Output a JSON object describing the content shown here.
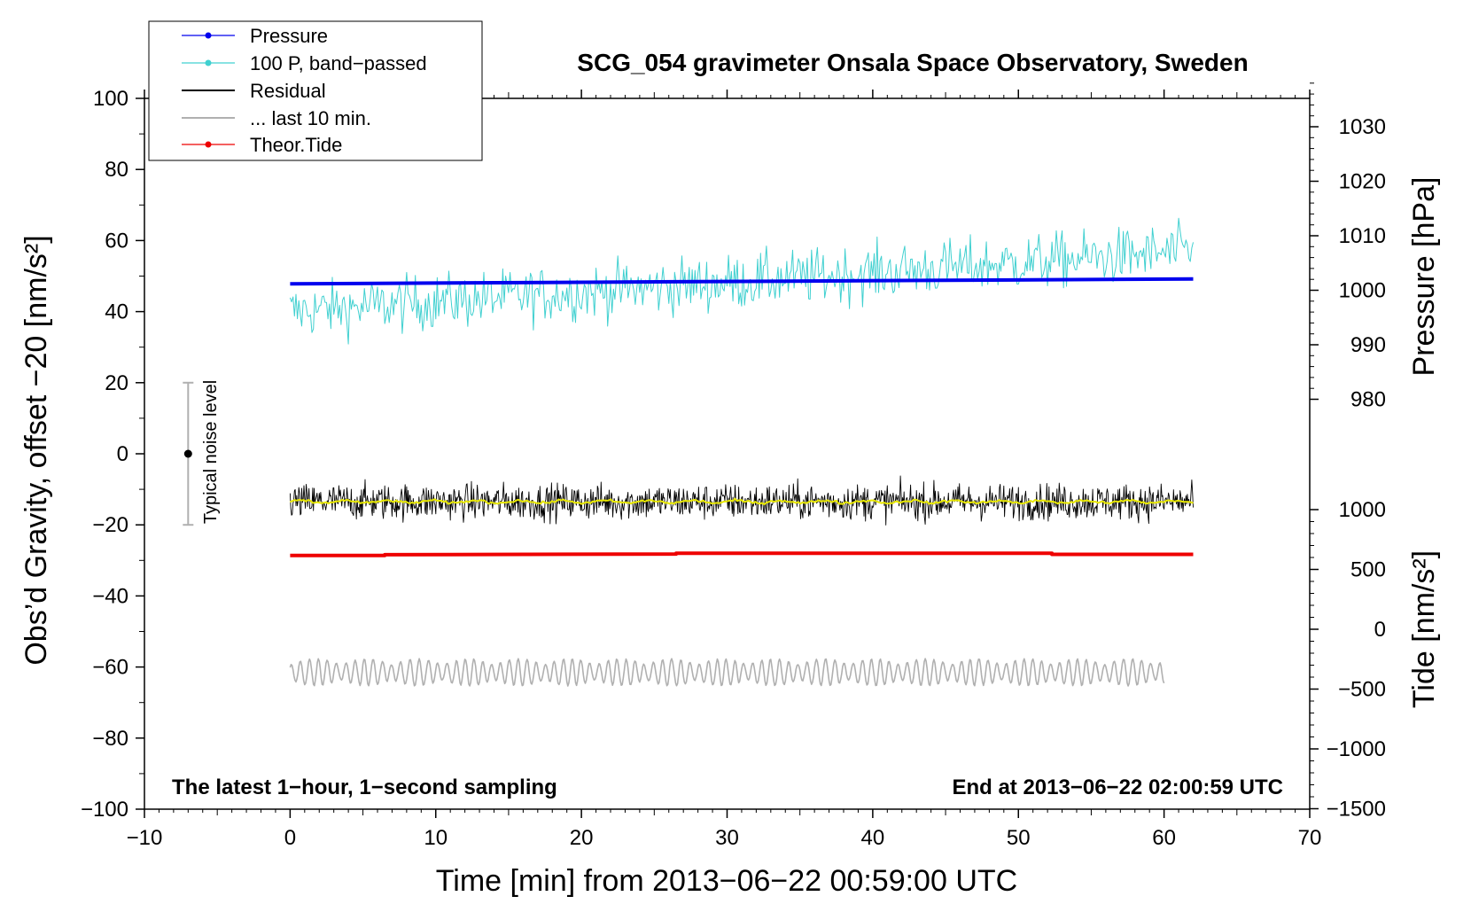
{
  "chart_data": {
    "type": "line",
    "title": "SCG_054 gravimeter Onsala Space Observatory, Sweden",
    "xlabel": "Time [min] from 2013−06−22 00:59:00 UTC",
    "xlim": [
      -10,
      70
    ],
    "xticks": [
      "−10",
      "0",
      "10",
      "20",
      "30",
      "40",
      "50",
      "60",
      "70"
    ],
    "ylabel_left": "Obs’d Gravity, offset −20 [nm/s²]",
    "ylim_left": [
      -100,
      100
    ],
    "yticks_left": [
      "100",
      "80",
      "60",
      "40",
      "20",
      "0",
      "−20",
      "−40",
      "−60",
      "−80",
      "−100"
    ],
    "ylabel_pressure": "Pressure [hPa]",
    "pressure_ticks": [
      "1030",
      "1020",
      "1010",
      "1000",
      "990",
      "980"
    ],
    "ylabel_tide": "Tide [nm/s²]",
    "tide_ticks": [
      "1000",
      "500",
      "0",
      "−500",
      "−1000",
      "−1500"
    ],
    "legend": {
      "position": "top-left",
      "items": [
        "Pressure",
        "100 P, band−passed",
        "Residual",
        "... last 10 min.",
        "Theor.Tide"
      ]
    },
    "annotations": {
      "noise_label": "Typical noise level",
      "bottom_left": "The latest 1−hour, 1−second sampling",
      "bottom_right": "End at 2013−06−22 02:00:59 UTC"
    },
    "noise_bar": {
      "x": -7,
      "center": 0,
      "low": -20,
      "high": 20
    },
    "series": [
      {
        "name": "Pressure",
        "color": "#0000ee",
        "x_range": [
          0,
          62
        ],
        "start_value": 47.8,
        "end_value": 49.2,
        "axis": "left"
      },
      {
        "name": "100 P, band−passed",
        "color": "#40d0d0",
        "x_range": [
          0,
          62
        ],
        "start_value": 40,
        "end_value": 57,
        "amplitude": 7,
        "axis": "left"
      },
      {
        "name": "Residual",
        "color": "#000000",
        "x_range": [
          0,
          62
        ],
        "mean": -13.5,
        "amplitude": 4.5,
        "axis": "left"
      },
      {
        "name": "Residual smoothed",
        "color": "#e8e800",
        "x_range": [
          0,
          62
        ],
        "mean": -13.5,
        "amplitude": 0.6,
        "axis": "left"
      },
      {
        "name": "... last 10 min.",
        "color": "#b0b0b0",
        "x_range": [
          0,
          60
        ],
        "mean": -61.5,
        "amplitude": 3.5,
        "axis": "left"
      },
      {
        "name": "Theor.Tide",
        "color": "#ee0000",
        "x_range": [
          0,
          62
        ],
        "points": [
          [
            0,
            -28.6
          ],
          [
            6.5,
            -28.6
          ],
          [
            6.5,
            -28.4
          ],
          [
            26.5,
            -28.2
          ],
          [
            26.5,
            -28.0
          ],
          [
            52.3,
            -28.0
          ],
          [
            52.3,
            -28.3
          ],
          [
            62,
            -28.3
          ]
        ],
        "axis": "left"
      }
    ]
  }
}
